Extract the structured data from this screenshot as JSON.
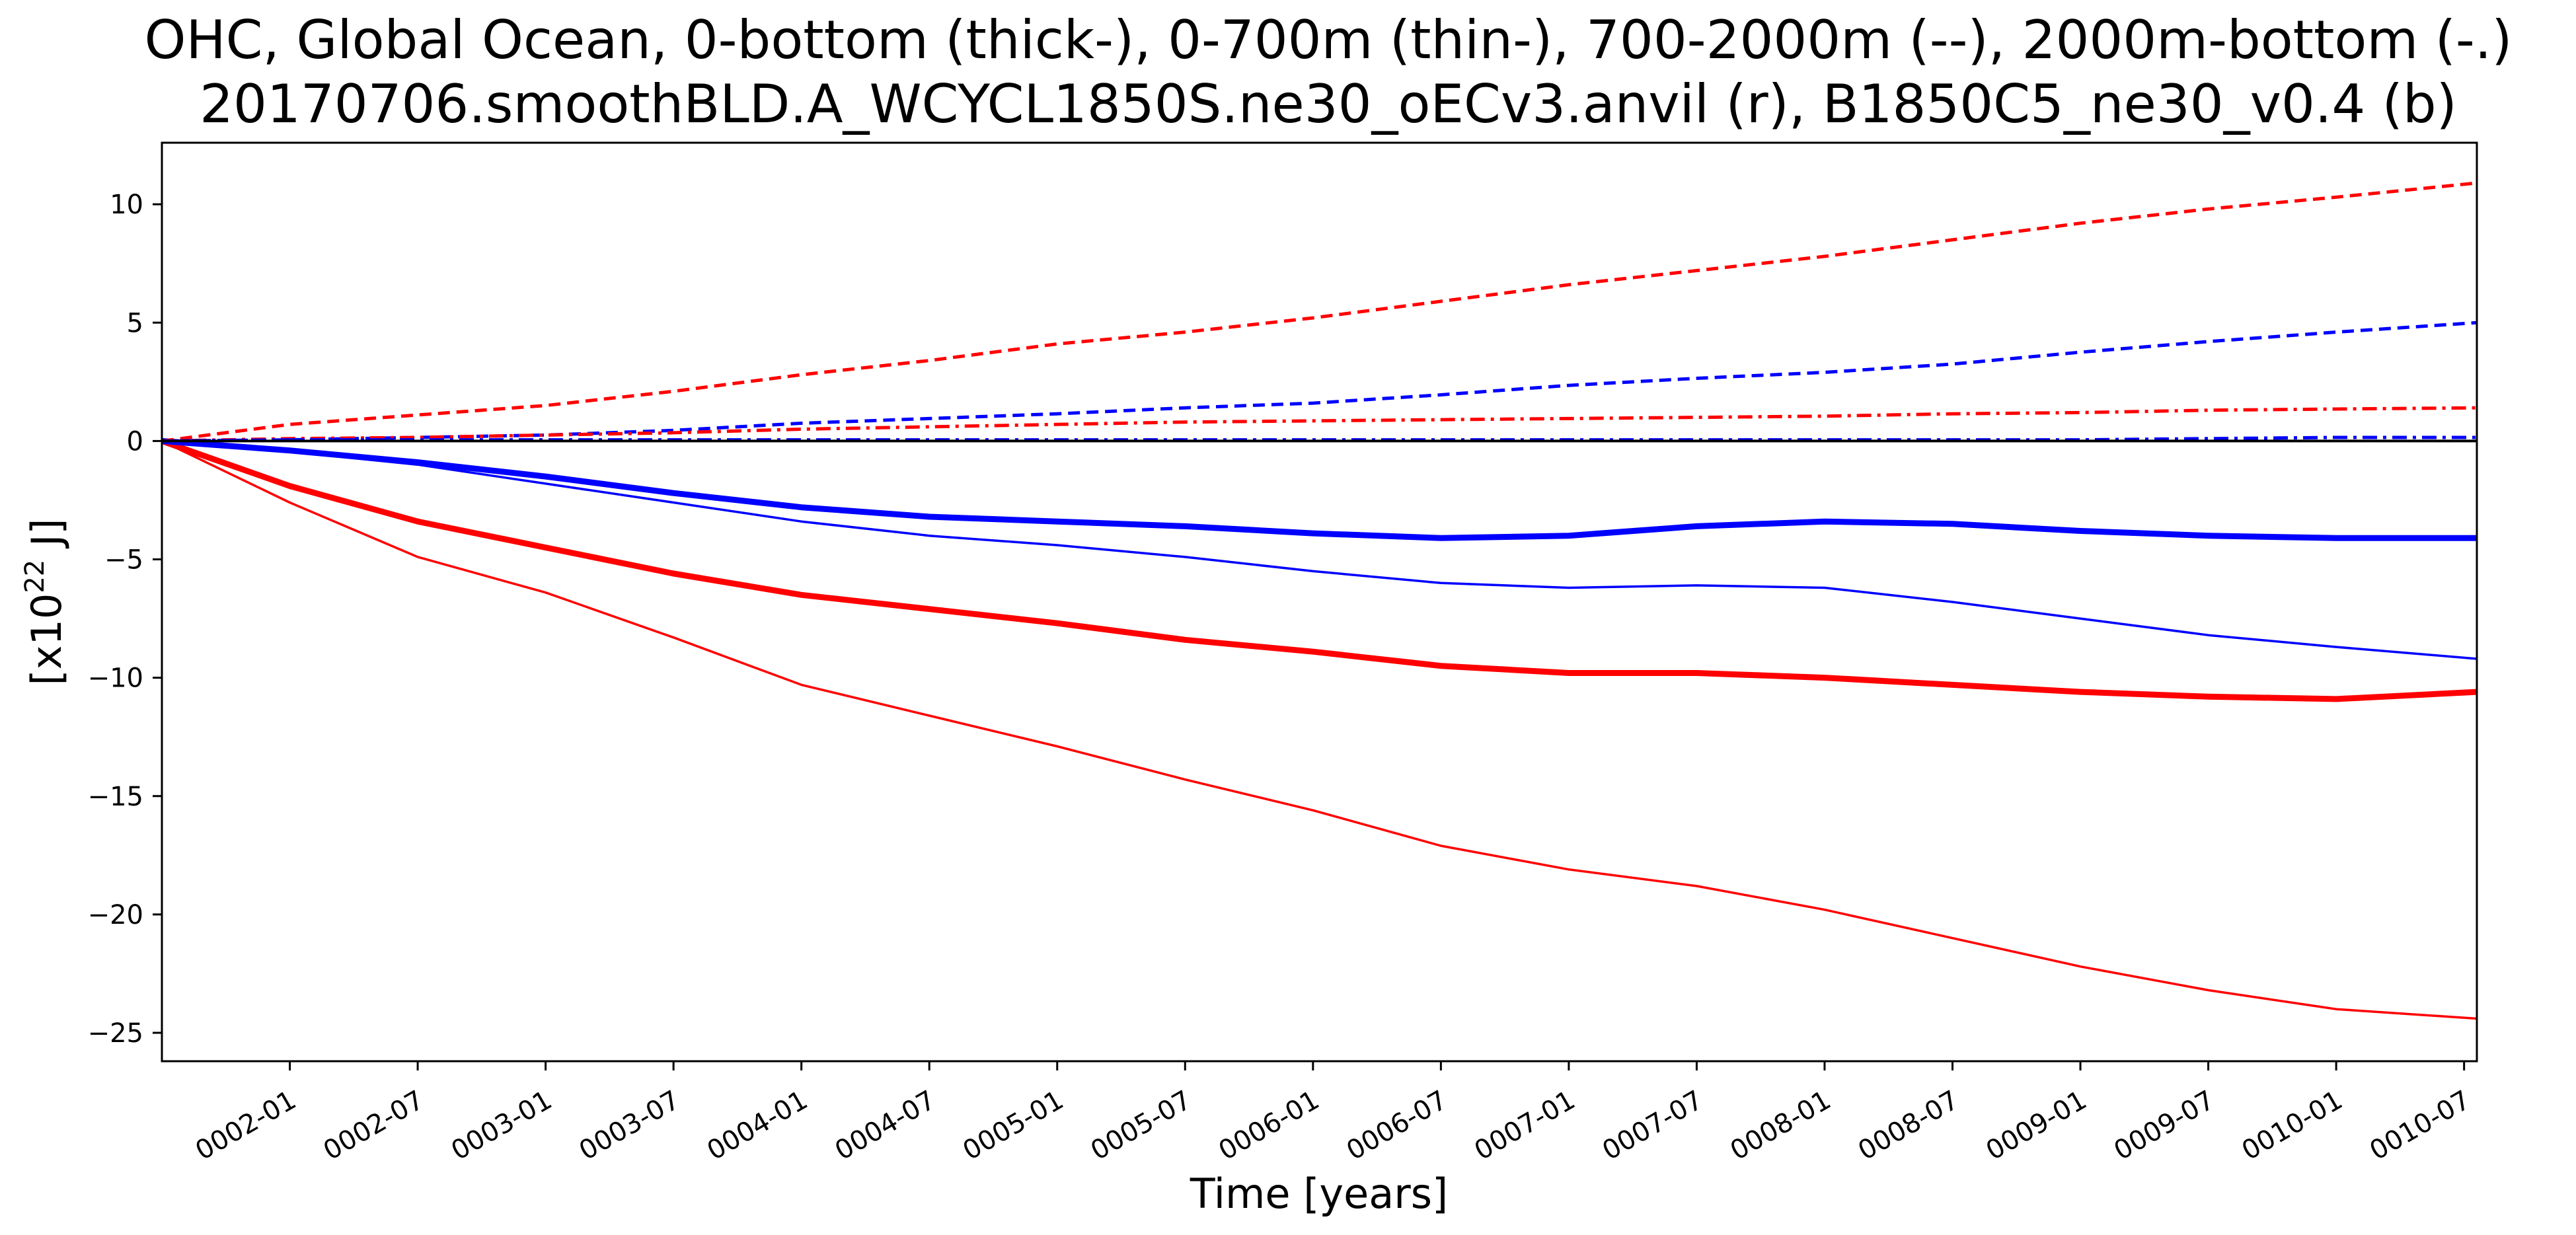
{
  "chart_data": {
    "type": "line",
    "title_line1": "OHC, Global Ocean, 0-bottom (thick-), 0-700m (thin-), 700-2000m (--), 2000m-bottom (-.)",
    "title_line2": "20170706.smoothBLD.A_WCYCL1850S.ne30_oECv3.anvil (r), B1850C5_ne30_v0.4 (b)",
    "xlabel": "Time [years]",
    "ylabel_base": "[x10",
    "ylabel_sup": "22",
    "ylabel_tail": " J]",
    "xlim": [
      1.5,
      10.55
    ],
    "ylim": [
      -26.2,
      12.6
    ],
    "grid": false,
    "legend": "none",
    "x_ticks": [
      {
        "x": 2.0,
        "label": "0002-01"
      },
      {
        "x": 2.5,
        "label": "0002-07"
      },
      {
        "x": 3.0,
        "label": "0003-01"
      },
      {
        "x": 3.5,
        "label": "0003-07"
      },
      {
        "x": 4.0,
        "label": "0004-01"
      },
      {
        "x": 4.5,
        "label": "0004-07"
      },
      {
        "x": 5.0,
        "label": "0005-01"
      },
      {
        "x": 5.5,
        "label": "0005-07"
      },
      {
        "x": 6.0,
        "label": "0006-01"
      },
      {
        "x": 6.5,
        "label": "0006-07"
      },
      {
        "x": 7.0,
        "label": "0007-01"
      },
      {
        "x": 7.5,
        "label": "0007-07"
      },
      {
        "x": 8.0,
        "label": "0008-01"
      },
      {
        "x": 8.5,
        "label": "0008-07"
      },
      {
        "x": 9.0,
        "label": "0009-01"
      },
      {
        "x": 9.5,
        "label": "0009-07"
      },
      {
        "x": 10.0,
        "label": "0010-01"
      },
      {
        "x": 10.5,
        "label": "0010-07"
      }
    ],
    "y_ticks": [
      {
        "y": 10,
        "label": "10"
      },
      {
        "y": 5,
        "label": "5"
      },
      {
        "y": 0,
        "label": "0"
      },
      {
        "y": -5,
        "label": "−5"
      },
      {
        "y": -10,
        "label": "−10"
      },
      {
        "y": -15,
        "label": "−15"
      },
      {
        "y": -20,
        "label": "−20"
      },
      {
        "y": -25,
        "label": "−25"
      }
    ],
    "x": [
      1.5,
      2.0,
      2.5,
      3.0,
      3.5,
      4.0,
      4.5,
      5.0,
      5.5,
      6.0,
      6.5,
      7.0,
      7.5,
      8.0,
      8.5,
      9.0,
      9.5,
      10.0,
      10.55
    ],
    "series": [
      {
        "id": "red-0-700m",
        "color": "#ff0000",
        "style": "solid",
        "width": 3.5,
        "values": [
          0,
          -2.6,
          -4.9,
          -6.4,
          -8.3,
          -10.3,
          -11.6,
          -12.9,
          -14.3,
          -15.6,
          -17.1,
          -18.1,
          -18.8,
          -19.8,
          -21.0,
          -22.2,
          -23.2,
          -24.0,
          -24.4
        ]
      },
      {
        "id": "red-0-bottom",
        "color": "#ff0000",
        "style": "solid",
        "width": 9,
        "values": [
          0,
          -1.9,
          -3.4,
          -4.5,
          -5.6,
          -6.5,
          -7.1,
          -7.7,
          -8.4,
          -8.9,
          -9.5,
          -9.8,
          -9.8,
          -10.0,
          -10.3,
          -10.6,
          -10.8,
          -10.9,
          -10.6
        ]
      },
      {
        "id": "blue-0-700m",
        "color": "#0000ff",
        "style": "solid",
        "width": 3.5,
        "values": [
          0,
          -0.45,
          -1.0,
          -1.8,
          -2.6,
          -3.4,
          -4.0,
          -4.4,
          -4.9,
          -5.5,
          -6.0,
          -6.2,
          -6.1,
          -6.2,
          -6.8,
          -7.5,
          -8.2,
          -8.7,
          -9.2
        ]
      },
      {
        "id": "blue-0-bottom",
        "color": "#0000ff",
        "style": "solid",
        "width": 9,
        "values": [
          0,
          -0.4,
          -0.9,
          -1.5,
          -2.2,
          -2.8,
          -3.2,
          -3.4,
          -3.6,
          -3.9,
          -4.1,
          -4.0,
          -3.6,
          -3.4,
          -3.5,
          -3.8,
          -4.0,
          -4.1,
          -4.1
        ]
      },
      {
        "id": "red-700-2000m",
        "color": "#ff0000",
        "style": "dash",
        "width": 5,
        "values": [
          0,
          0.7,
          1.1,
          1.5,
          2.1,
          2.8,
          3.4,
          4.1,
          4.6,
          5.2,
          5.9,
          6.6,
          7.2,
          7.8,
          8.5,
          9.2,
          9.8,
          10.3,
          10.9
        ]
      },
      {
        "id": "blue-700-2000m",
        "color": "#0000ff",
        "style": "dash",
        "width": 5,
        "values": [
          0,
          0.05,
          0.15,
          0.25,
          0.45,
          0.75,
          0.95,
          1.15,
          1.4,
          1.6,
          1.95,
          2.35,
          2.65,
          2.9,
          3.25,
          3.75,
          4.2,
          4.6,
          5.0
        ]
      },
      {
        "id": "red-2000m-bottom",
        "color": "#ff0000",
        "style": "dashdot",
        "width": 5,
        "values": [
          0,
          0.1,
          0.15,
          0.25,
          0.35,
          0.5,
          0.6,
          0.7,
          0.8,
          0.85,
          0.9,
          0.95,
          1.0,
          1.05,
          1.15,
          1.2,
          1.3,
          1.35,
          1.4
        ]
      },
      {
        "id": "blue-2000m-bottom",
        "color": "#0000ff",
        "style": "dashdot",
        "width": 5,
        "values": [
          0,
          0.05,
          0.05,
          0.05,
          0.05,
          0.05,
          0.05,
          0.05,
          0.05,
          0.05,
          0.05,
          0.05,
          0.05,
          0.05,
          0.05,
          0.05,
          0.1,
          0.15,
          0.15
        ]
      },
      {
        "id": "black-zero",
        "color": "#000000",
        "style": "solid",
        "width": 4,
        "values": [
          0,
          0,
          0,
          0,
          0,
          0,
          0,
          0,
          0,
          0,
          0,
          0,
          0,
          0,
          0,
          0,
          0,
          0,
          0
        ]
      }
    ]
  }
}
